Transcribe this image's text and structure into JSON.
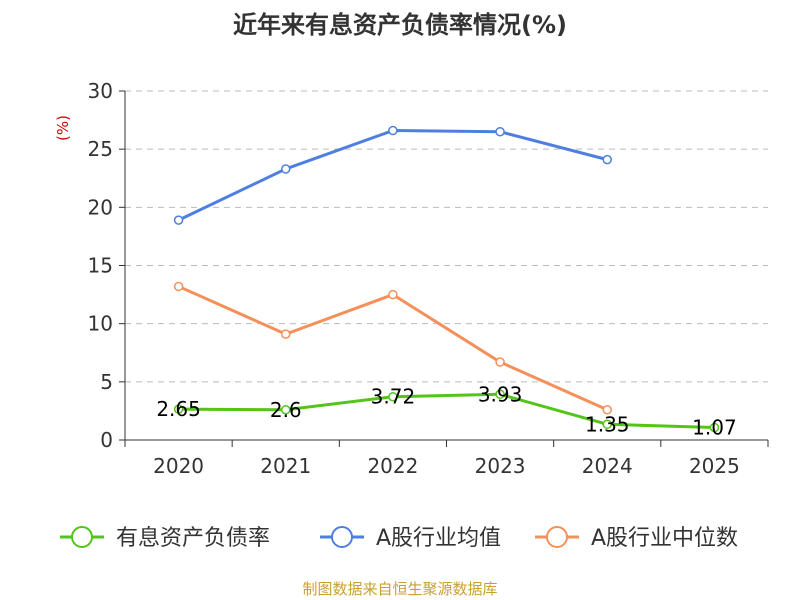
{
  "chart_data": {
    "type": "line",
    "title": "近年来有息资产负债率情况(%)",
    "unit_label": "(%)",
    "categories": [
      "2020",
      "2021",
      "2022",
      "2023",
      "2024",
      "2025"
    ],
    "ylim": [
      0,
      30
    ],
    "yticks": [
      "0",
      "5",
      "10",
      "15",
      "20",
      "25",
      "30"
    ],
    "grid": true,
    "legend_position": "bottom",
    "series": [
      {
        "name": "有息资产负债率",
        "color": "#52c41a",
        "values": [
          2.65,
          2.6,
          3.72,
          3.93,
          1.35,
          1.07
        ],
        "labels": [
          "2.65",
          "2.6",
          "3.72",
          "3.93",
          "1.35",
          "1.07"
        ]
      },
      {
        "name": "A股行业均值",
        "color": "#4e7fe0",
        "values": [
          18.9,
          23.3,
          26.6,
          26.5,
          24.1,
          null
        ]
      },
      {
        "name": "A股行业中位数",
        "color": "#f5905a",
        "values": [
          13.2,
          9.1,
          12.5,
          6.7,
          2.6,
          null
        ]
      }
    ]
  },
  "source": "制图数据来自恒生聚源数据库"
}
